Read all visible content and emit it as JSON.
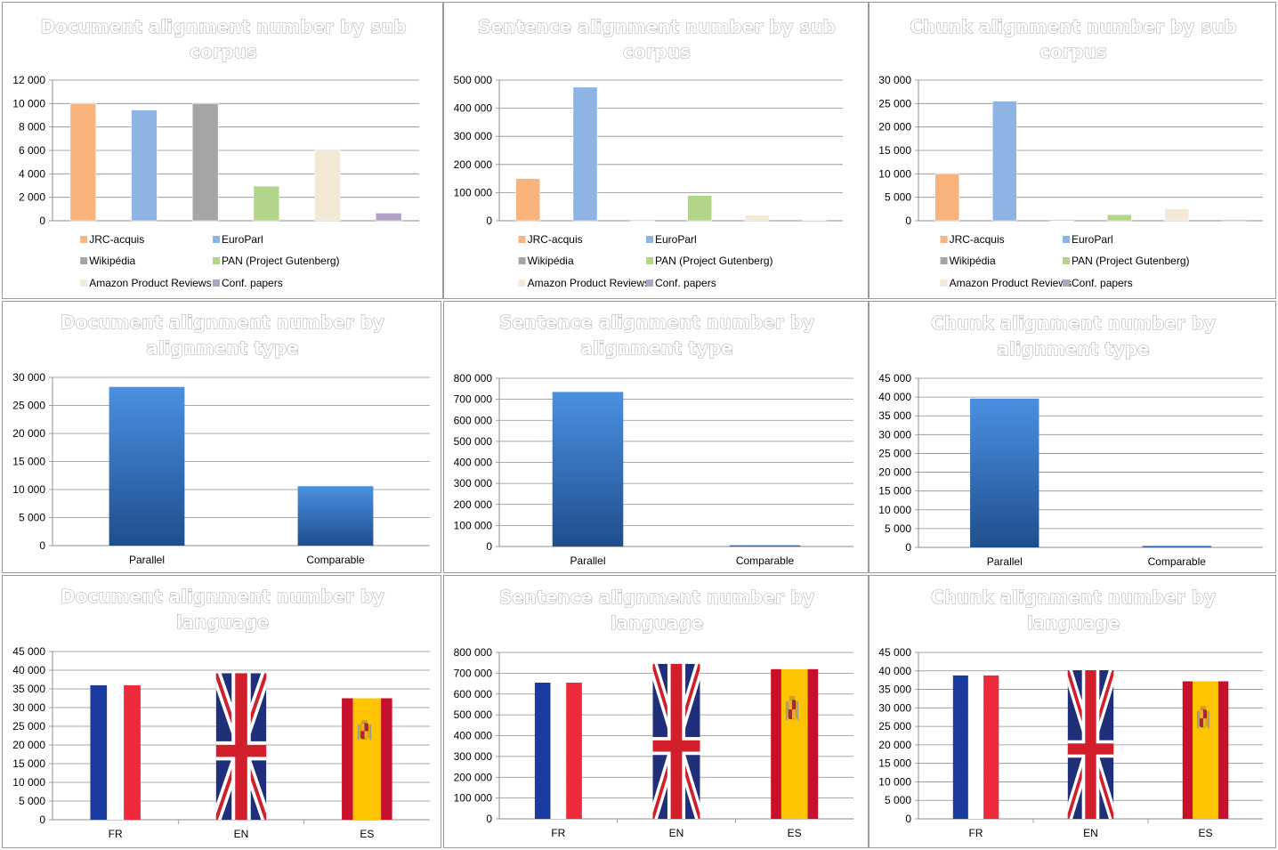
{
  "colors": {
    "JRC-acquis": "#f9b47e",
    "EuroParl": "#8eb4e3",
    "Wikipédia": "#a5a5a5",
    "PAN (Project Gutenberg)": "#b3d58a",
    "Amazon Product Reviews": "#f4e9d4",
    "Conf. papers": "#b3a2c7",
    "type_bar_top": "#4a90e2",
    "type_bar_bottom": "#1f4e8c",
    "fr_blue": "#1a3aa0",
    "fr_red": "#ee2b3d",
    "uk_blue": "#1f2f7a",
    "uk_red": "#d1202c",
    "es_red": "#c8102e",
    "es_yellow": "#ffc400"
  },
  "chart_data": [
    {
      "type": "bar",
      "title": "Document alignment number by sub corpus",
      "title_lines": [
        "Document alignment number by sub",
        "corpus"
      ],
      "categories": [
        "JRC-acquis",
        "EuroParl",
        "Wikipédia",
        "PAN (Project Gutenberg)",
        "Amazon Product Reviews",
        "Conf. papers"
      ],
      "values": [
        10000,
        9450,
        10000,
        2950,
        6000,
        650
      ],
      "ylim": [
        0,
        12000
      ],
      "yticks": [
        0,
        2000,
        4000,
        6000,
        8000,
        10000,
        12000
      ],
      "ytick_labels": [
        "0",
        "2 000",
        "4 000",
        "6 000",
        "8 000",
        "10 000",
        "12 000"
      ],
      "legend": [
        "JRC-acquis",
        "EuroParl",
        "Wikipédia",
        "PAN (Project Gutenberg)",
        "Amazon Product Reviews",
        "Conf. papers"
      ],
      "legend_position": "bottom",
      "grid": true
    },
    {
      "type": "bar",
      "title": "Sentence alignment number by sub corpus",
      "title_lines": [
        "Sentence alignment number by sub",
        "corpus"
      ],
      "categories": [
        "JRC-acquis",
        "EuroParl",
        "Wikipédia",
        "PAN (Project Gutenberg)",
        "Amazon Product Reviews",
        "Conf. papers"
      ],
      "values": [
        150000,
        475000,
        2000,
        90000,
        20000,
        1000
      ],
      "ylim": [
        0,
        500000
      ],
      "yticks": [
        0,
        100000,
        200000,
        300000,
        400000,
        500000
      ],
      "ytick_labels": [
        "0",
        "100 000",
        "200 000",
        "300 000",
        "400 000",
        "500 000"
      ],
      "legend": [
        "JRC-acquis",
        "EuroParl",
        "Wikipédia",
        "PAN (Project Gutenberg)",
        "Amazon Product Reviews",
        "Conf. papers"
      ],
      "legend_position": "bottom",
      "grid": true
    },
    {
      "type": "bar",
      "title": "Chunk alignment number by sub corpus",
      "title_lines": [
        "Chunk alignment number by sub",
        "corpus"
      ],
      "categories": [
        "JRC-acquis",
        "EuroParl",
        "Wikipédia",
        "PAN (Project Gutenberg)",
        "Amazon Product Reviews",
        "Conf. papers"
      ],
      "values": [
        10000,
        25500,
        150,
        1300,
        2500,
        200
      ],
      "ylim": [
        0,
        30000
      ],
      "yticks": [
        0,
        5000,
        10000,
        15000,
        20000,
        25000,
        30000
      ],
      "ytick_labels": [
        "0",
        "5 000",
        "10 000",
        "15 000",
        "20 000",
        "25 000",
        "30 000"
      ],
      "legend": [
        "JRC-acquis",
        "EuroParl",
        "Wikipédia",
        "PAN (Project Gutenberg)",
        "Amazon Product Reviews",
        "Conf. papers"
      ],
      "legend_position": "bottom",
      "grid": true
    },
    {
      "type": "bar",
      "title": "Document alignment number by alignment type",
      "title_lines": [
        "Document alignment number by",
        "alignment type"
      ],
      "categories": [
        "Parallel",
        "Comparable"
      ],
      "values": [
        28300,
        10600
      ],
      "ylim": [
        0,
        30000
      ],
      "yticks": [
        0,
        5000,
        10000,
        15000,
        20000,
        25000,
        30000
      ],
      "ytick_labels": [
        "0",
        "5 000",
        "10 000",
        "15 000",
        "20 000",
        "25 000",
        "30 000"
      ],
      "grid": true
    },
    {
      "type": "bar",
      "title": "Sentence alignment number by alignment type",
      "title_lines": [
        "Sentence alignment number by",
        "alignment type"
      ],
      "categories": [
        "Parallel",
        "Comparable"
      ],
      "values": [
        735000,
        6000
      ],
      "ylim": [
        0,
        800000
      ],
      "yticks": [
        0,
        100000,
        200000,
        300000,
        400000,
        500000,
        600000,
        700000,
        800000
      ],
      "ytick_labels": [
        "0",
        "100 000",
        "200 000",
        "300 000",
        "400 000",
        "500 000",
        "600 000",
        "700 000",
        "800 000"
      ],
      "grid": true
    },
    {
      "type": "bar",
      "title": "Chunk alignment number by alignment type",
      "title_lines": [
        "Chunk alignment number by",
        "alignment type"
      ],
      "categories": [
        "Parallel",
        "Comparable"
      ],
      "values": [
        39600,
        400
      ],
      "ylim": [
        0,
        45000
      ],
      "yticks": [
        0,
        5000,
        10000,
        15000,
        20000,
        25000,
        30000,
        35000,
        40000,
        45000
      ],
      "ytick_labels": [
        "0",
        "5 000",
        "10 000",
        "15 000",
        "20 000",
        "25 000",
        "30 000",
        "35 000",
        "40 000",
        "45 000"
      ],
      "grid": true
    },
    {
      "type": "bar",
      "title": "Document alignment number by language",
      "title_lines": [
        "Document alignment number by",
        "language"
      ],
      "categories": [
        "FR",
        "EN",
        "ES"
      ],
      "values": [
        36000,
        39200,
        32500
      ],
      "ylim": [
        0,
        45000
      ],
      "yticks": [
        0,
        5000,
        10000,
        15000,
        20000,
        25000,
        30000,
        35000,
        40000,
        45000
      ],
      "ytick_labels": [
        "0",
        "5 000",
        "10 000",
        "15 000",
        "20 000",
        "25 000",
        "30 000",
        "35 000",
        "40 000",
        "45 000"
      ],
      "bar_fill": "flags",
      "grid": true
    },
    {
      "type": "bar",
      "title": "Sentence alignment number by language",
      "title_lines": [
        "Sentence alignment number by",
        "language"
      ],
      "categories": [
        "FR",
        "EN",
        "ES"
      ],
      "values": [
        655000,
        745000,
        720000
      ],
      "ylim": [
        0,
        800000
      ],
      "yticks": [
        0,
        100000,
        200000,
        300000,
        400000,
        500000,
        600000,
        700000,
        800000
      ],
      "ytick_labels": [
        "0",
        "100 000",
        "200 000",
        "300 000",
        "400 000",
        "500 000",
        "600 000",
        "700 000",
        "800 000"
      ],
      "bar_fill": "flags",
      "grid": true
    },
    {
      "type": "bar",
      "title": "Chunk alignment number by language",
      "title_lines": [
        "Chunk alignment number by",
        "language"
      ],
      "categories": [
        "FR",
        "EN",
        "ES"
      ],
      "values": [
        38800,
        40200,
        37200
      ],
      "ylim": [
        0,
        45000
      ],
      "yticks": [
        0,
        5000,
        10000,
        15000,
        20000,
        25000,
        30000,
        35000,
        40000,
        45000
      ],
      "ytick_labels": [
        "0",
        "5 000",
        "10 000",
        "15 000",
        "20 000",
        "25 000",
        "30 000",
        "35 000",
        "40 000",
        "45 000"
      ],
      "bar_fill": "flags",
      "grid": true
    }
  ]
}
